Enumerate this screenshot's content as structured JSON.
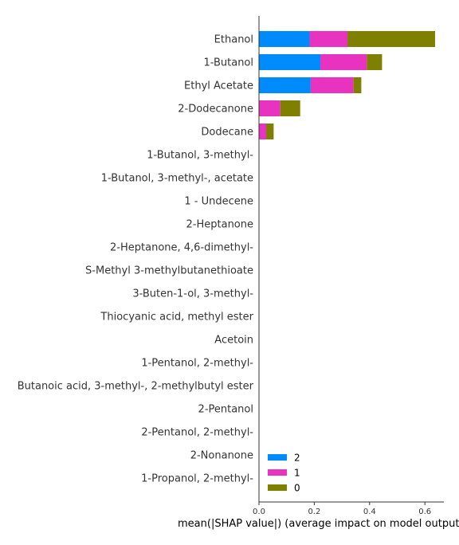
{
  "chart_data": {
    "type": "bar",
    "orientation": "horizontal",
    "stacked": true,
    "categories": [
      "Ethanol",
      "1-Butanol",
      "Ethyl Acetate",
      "2-Dodecanone",
      "Dodecane",
      "1-Butanol, 3-methyl-",
      "1-Butanol, 3-methyl-, acetate",
      "1 - Undecene",
      "2-Heptanone",
      "2-Heptanone, 4,6-dimethyl-",
      "S-Methyl 3-methylbutanethioate",
      "3-Buten-1-ol, 3-methyl-",
      "Thiocyanic acid, methyl ester",
      "Acetoin",
      "1-Pentanol, 2-methyl-",
      "Butanoic acid, 3-methyl-, 2-methylbutyl ester",
      "2-Pentanol",
      "2-Pentanol, 2-methyl-",
      "2-Nonanone",
      "1-Propanol, 2-methyl-"
    ],
    "series": [
      {
        "name": "2",
        "color": "#008bfb",
        "values": [
          0.183,
          0.222,
          0.187,
          0.0,
          0.0,
          0,
          0,
          0,
          0,
          0,
          0,
          0,
          0,
          0,
          0,
          0,
          0,
          0,
          0,
          0
        ]
      },
      {
        "name": "1",
        "color": "#e833c1",
        "values": [
          0.137,
          0.168,
          0.155,
          0.077,
          0.026,
          0,
          0,
          0,
          0,
          0,
          0,
          0,
          0,
          0,
          0,
          0,
          0,
          0,
          0,
          0
        ]
      },
      {
        "name": "0",
        "color": "#808000",
        "values": [
          0.317,
          0.055,
          0.028,
          0.072,
          0.027,
          0,
          0,
          0,
          0,
          0,
          0,
          0,
          0,
          0,
          0,
          0,
          0,
          0,
          0,
          0
        ]
      }
    ],
    "xlabel": "mean(|SHAP value|) (average impact on model output",
    "ylabel": "",
    "xlim": [
      0,
      0.67
    ],
    "xticks": [
      "0.0",
      "0.2",
      "0.4",
      "0.6"
    ],
    "grid": false,
    "legend_placement": "lower-left",
    "legend_order": [
      "2",
      "1",
      "0"
    ]
  }
}
